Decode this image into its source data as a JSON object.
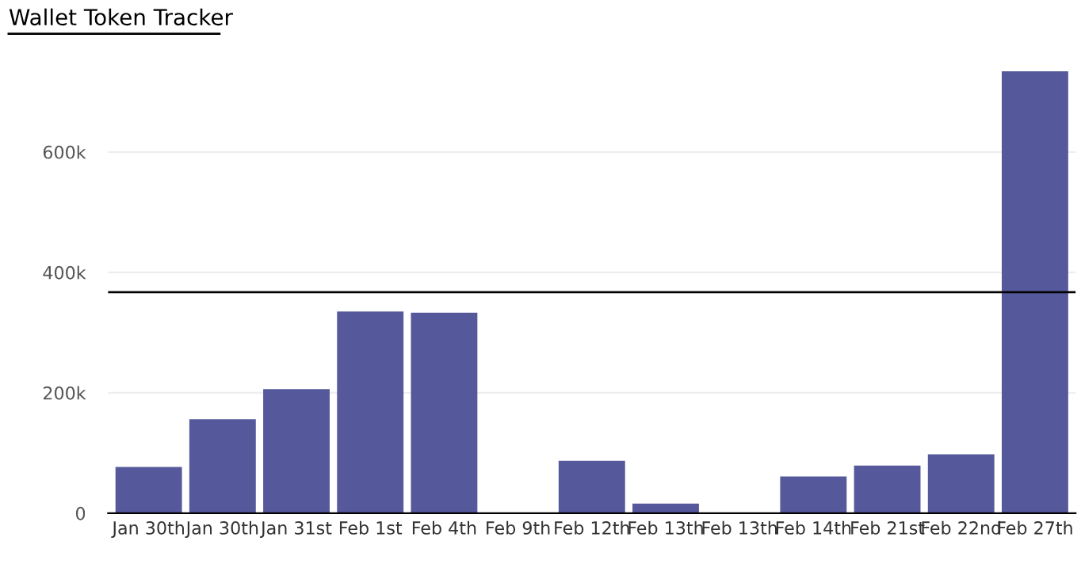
{
  "chart_data": {
    "type": "bar",
    "title": "Wallet Token Tracker",
    "categories": [
      "Jan 30th",
      "Jan 30th",
      "Jan 31st",
      "Feb 1st",
      "Feb 4th",
      "Feb 9th",
      "Feb 12th",
      "Feb 13th",
      "Feb 13th",
      "Feb 14th",
      "Feb 21st",
      "Feb 22nd",
      "Feb 27th"
    ],
    "values": [
      77000,
      156000,
      206000,
      335000,
      333000,
      0,
      87000,
      16000,
      0,
      61000,
      79000,
      98000,
      734000
    ],
    "color": "#55589a",
    "ylim": [
      0,
      740000
    ],
    "yticks": [
      {
        "value": 0,
        "label": "0"
      },
      {
        "value": 200000,
        "label": "200k"
      },
      {
        "value": 400000,
        "label": "400k"
      },
      {
        "value": 600000,
        "label": "600k"
      }
    ],
    "ref_lines": [
      {
        "axis": "y",
        "value": 367000,
        "color": "#000000"
      }
    ],
    "grid": "y"
  }
}
